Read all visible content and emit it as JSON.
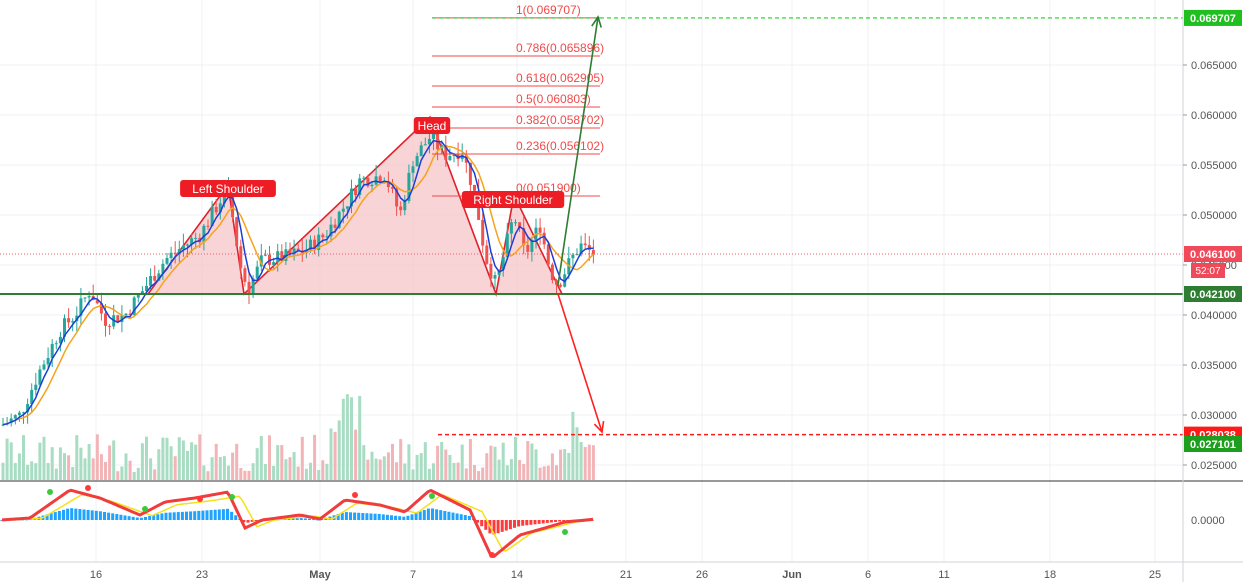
{
  "chart_data": {
    "type": "candlestick",
    "title": "",
    "x_axis": {
      "tick_labels": [
        "16",
        "23",
        "May",
        "7",
        "14",
        "21",
        "26",
        "Jun",
        "6",
        "11",
        "18",
        "25"
      ]
    },
    "y_axis": {
      "range": [
        0.0235,
        0.0715
      ],
      "tick_labels": [
        "0.065000",
        "0.060000",
        "0.055000",
        "0.050000",
        "0.045000",
        "0.040000",
        "0.035000",
        "0.030000",
        "0.025000"
      ],
      "grid": true
    },
    "price_labels": [
      {
        "name": "target-up",
        "value": 0.069707,
        "label": "0.069707",
        "color": "#1fbf1f"
      },
      {
        "name": "current-price",
        "value": 0.0461,
        "label": "0.046100",
        "color": "#f04a5a"
      },
      {
        "name": "neckline",
        "value": 0.0421,
        "label": "0.042100",
        "color": "#2e7d32"
      },
      {
        "name": "target-down",
        "value": 0.028038,
        "label": "0.028038",
        "color": "#ff1a1a"
      },
      {
        "name": "volume-level",
        "value": 0.027101,
        "label": "0.027101",
        "color": "#1e9e1e"
      }
    ],
    "countdown": "52:07",
    "fibonacci": [
      {
        "label": "1(0.069707)",
        "value": 0.069707
      },
      {
        "label": "0.786(0.065896)",
        "value": 0.065896
      },
      {
        "label": "0.618(0.062905)",
        "value": 0.062905
      },
      {
        "label": "0.5(0.060803)",
        "value": 0.060803
      },
      {
        "label": "0.382(0.058702)",
        "value": 0.058702
      },
      {
        "label": "0.236(0.056102)",
        "value": 0.056102
      },
      {
        "label": "0(0.051900)",
        "value": 0.0519
      }
    ],
    "pattern_labels": {
      "left_shoulder": "Left Shoulder",
      "head": "Head",
      "right_shoulder": "Right Shoulder"
    },
    "oscillator": {
      "tick_label": "0.0000"
    },
    "colors": {
      "up": "#26a69a",
      "down": "#ef5350",
      "fib": "#f04a4a",
      "pattern_fill": "#f7c5c8",
      "pattern_line": "#e0202a",
      "ma_fast": "#1a3fd6",
      "ma_slow": "#f6a21b"
    }
  }
}
